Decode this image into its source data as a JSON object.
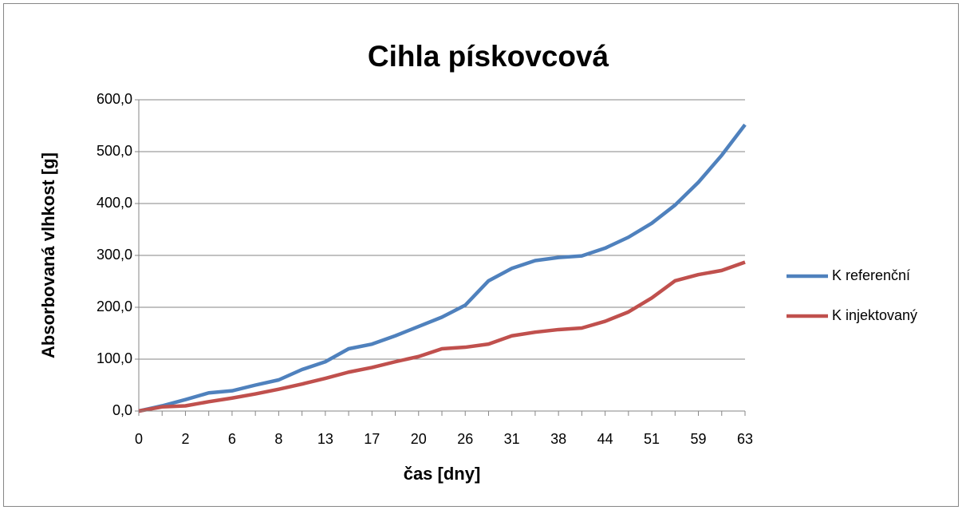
{
  "chart_data": {
    "type": "line",
    "title": "Cihla pískovcová",
    "x_label": "čas [dny]",
    "y_label": "Absorbovaná vlhkost [g]",
    "categories": [
      "0",
      null,
      "2",
      null,
      "6",
      null,
      "8",
      null,
      "13",
      null,
      "17",
      null,
      "20",
      null,
      "26",
      null,
      "31",
      null,
      "38",
      null,
      "44",
      null,
      "51",
      null,
      "59",
      null,
      "63"
    ],
    "series": [
      {
        "name": "K referenční",
        "color": "#4f81bd",
        "values": [
          0,
          10,
          22,
          35,
          39,
          50,
          60,
          80,
          95,
          120,
          129,
          145,
          163,
          181,
          204,
          251,
          275,
          290,
          296,
          299,
          314,
          335,
          362,
          397,
          441,
          493,
          552
        ]
      },
      {
        "name": "K injektovaný",
        "color": "#c0504d",
        "values": [
          0,
          8,
          10,
          18,
          25,
          33,
          42,
          52,
          63,
          75,
          84,
          95,
          105,
          120,
          123,
          129,
          145,
          152,
          157,
          160,
          173,
          191,
          218,
          251,
          263,
          271,
          287
        ]
      }
    ],
    "ylim": [
      0,
      600
    ],
    "yticks": [
      {
        "value": 0,
        "label": "0,0"
      },
      {
        "value": 100,
        "label": "100,0"
      },
      {
        "value": 200,
        "label": "200,0"
      },
      {
        "value": 300,
        "label": "300,0"
      },
      {
        "value": 400,
        "label": "400,0"
      },
      {
        "value": 500,
        "label": "500,0"
      },
      {
        "value": 600,
        "label": "600,0"
      }
    ],
    "grid": true,
    "legend": "right"
  }
}
